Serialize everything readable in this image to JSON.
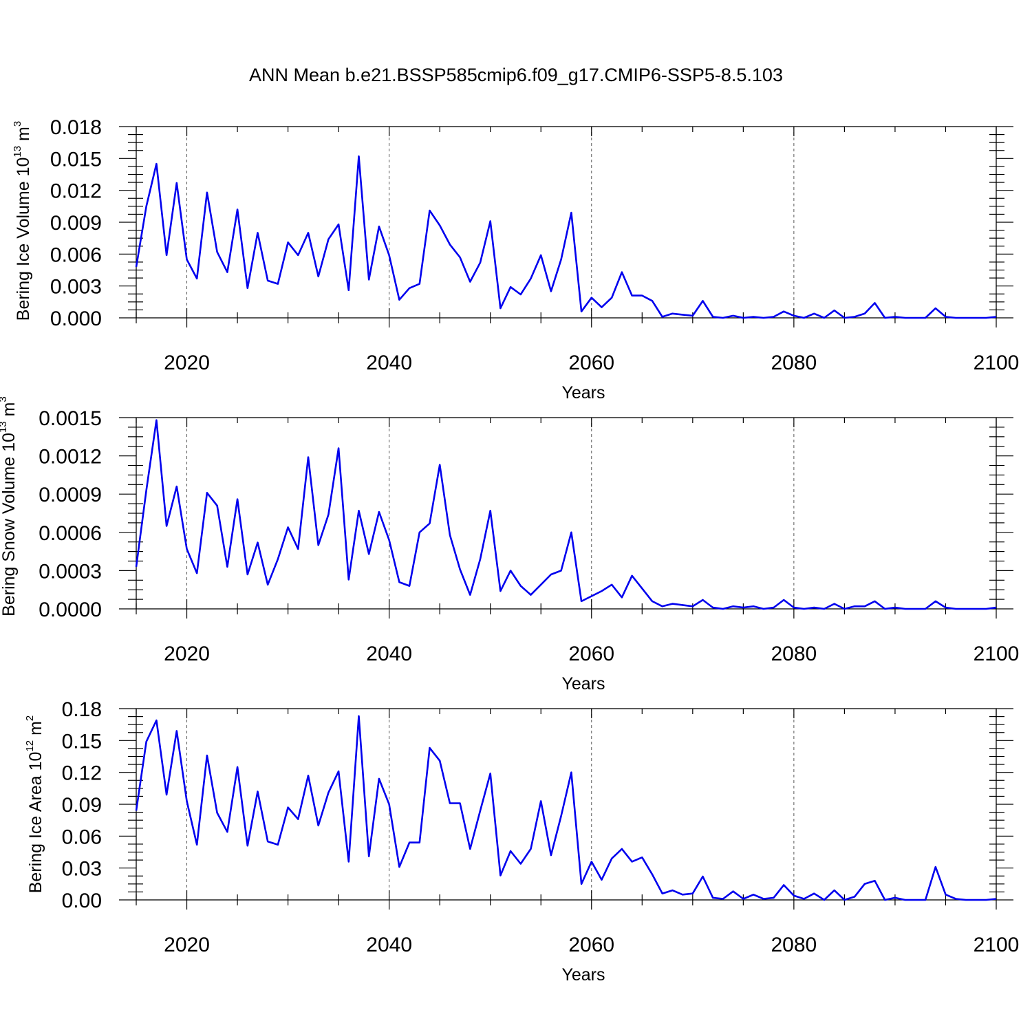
{
  "chart_data": [
    {
      "type": "line",
      "title": "ANN Mean b.e21.BSSP585cmip6.f09_g17.CMIP6-SSP5-8.5.103",
      "xlabel": "Years",
      "ylabel": "Bering Ice Volume 10",
      "ylabel_exponent": "13",
      "ylabel_unit": " m",
      "ylabel_unit_exponent": "3",
      "xlim": [
        2015,
        2100
      ],
      "ylim": [
        0,
        0.018
      ],
      "xticks": [
        2020,
        2040,
        2060,
        2080,
        2100
      ],
      "yticks": [
        0.0,
        0.003,
        0.006,
        0.009,
        0.012,
        0.015,
        0.018
      ],
      "ytick_labels": [
        "0.000",
        "0.003",
        "0.006",
        "0.009",
        "0.012",
        "0.015",
        "0.018"
      ],
      "grid": "dashed vertical at major x ticks",
      "series_color": "#0000ee",
      "x": [
        2015,
        2016,
        2017,
        2018,
        2019,
        2020,
        2021,
        2022,
        2023,
        2024,
        2025,
        2026,
        2027,
        2028,
        2029,
        2030,
        2031,
        2032,
        2033,
        2034,
        2035,
        2036,
        2037,
        2038,
        2039,
        2040,
        2041,
        2042,
        2043,
        2044,
        2045,
        2046,
        2047,
        2048,
        2049,
        2050,
        2051,
        2052,
        2053,
        2054,
        2055,
        2056,
        2057,
        2058,
        2059,
        2060,
        2061,
        2062,
        2063,
        2064,
        2065,
        2066,
        2067,
        2068,
        2069,
        2070,
        2071,
        2072,
        2073,
        2074,
        2075,
        2076,
        2077,
        2078,
        2079,
        2080,
        2081,
        2082,
        2083,
        2084,
        2085,
        2086,
        2087,
        2088,
        2089,
        2090,
        2091,
        2092,
        2093,
        2094,
        2095,
        2096,
        2097,
        2098,
        2099,
        2100
      ],
      "values": [
        0.0048,
        0.0105,
        0.0145,
        0.0059,
        0.0127,
        0.0055,
        0.0037,
        0.0118,
        0.0062,
        0.0043,
        0.0102,
        0.0028,
        0.008,
        0.0035,
        0.0032,
        0.0071,
        0.0059,
        0.008,
        0.0039,
        0.0074,
        0.0088,
        0.0026,
        0.0152,
        0.0036,
        0.0086,
        0.0059,
        0.0017,
        0.0028,
        0.0032,
        0.0101,
        0.0087,
        0.0069,
        0.0057,
        0.0034,
        0.0052,
        0.0091,
        0.0009,
        0.0029,
        0.0022,
        0.0037,
        0.0059,
        0.0025,
        0.0055,
        0.0099,
        0.0006,
        0.0019,
        0.001,
        0.0019,
        0.0043,
        0.0021,
        0.0021,
        0.0016,
        0.0001,
        0.0004,
        0.0003,
        0.0002,
        0.0016,
        0.0001,
        0.0,
        0.0002,
        0.0,
        0.0001,
        0.0,
        0.0001,
        0.0006,
        0.0002,
        0.0,
        0.0004,
        0.0,
        0.0007,
        0.0,
        0.0001,
        0.0004,
        0.0014,
        0.0,
        0.0001,
        0.0,
        0.0,
        0.0,
        0.0009,
        0.0001,
        0.0,
        0.0,
        0.0,
        0.0,
        0.0001
      ]
    },
    {
      "type": "line",
      "xlabel": "Years",
      "ylabel": "Bering Snow Volume 10",
      "ylabel_exponent": "13",
      "ylabel_unit": " m",
      "ylabel_unit_exponent": "3",
      "xlim": [
        2015,
        2100
      ],
      "ylim": [
        0,
        0.0015
      ],
      "xticks": [
        2020,
        2040,
        2060,
        2080,
        2100
      ],
      "yticks": [
        0.0,
        0.0003,
        0.0006,
        0.0009,
        0.0012,
        0.0015
      ],
      "ytick_labels": [
        "0.0000",
        "0.0003",
        "0.0006",
        "0.0009",
        "0.0012",
        "0.0015"
      ],
      "grid": "dashed vertical at major x ticks",
      "series_color": "#0000ee",
      "x": [
        2015,
        2016,
        2017,
        2018,
        2019,
        2020,
        2021,
        2022,
        2023,
        2024,
        2025,
        2026,
        2027,
        2028,
        2029,
        2030,
        2031,
        2032,
        2033,
        2034,
        2035,
        2036,
        2037,
        2038,
        2039,
        2040,
        2041,
        2042,
        2043,
        2044,
        2045,
        2046,
        2047,
        2048,
        2049,
        2050,
        2051,
        2052,
        2053,
        2054,
        2055,
        2056,
        2057,
        2058,
        2059,
        2060,
        2061,
        2062,
        2063,
        2064,
        2065,
        2066,
        2067,
        2068,
        2069,
        2070,
        2071,
        2072,
        2073,
        2074,
        2075,
        2076,
        2077,
        2078,
        2079,
        2080,
        2081,
        2082,
        2083,
        2084,
        2085,
        2086,
        2087,
        2088,
        2089,
        2090,
        2091,
        2092,
        2093,
        2094,
        2095,
        2096,
        2097,
        2098,
        2099,
        2100
      ],
      "values": [
        0.00033,
        0.00093,
        0.00148,
        0.00065,
        0.00096,
        0.00047,
        0.00028,
        0.00091,
        0.00081,
        0.00033,
        0.00086,
        0.00027,
        0.00052,
        0.00019,
        0.00039,
        0.00064,
        0.00047,
        0.00119,
        0.0005,
        0.00074,
        0.00126,
        0.00023,
        0.00077,
        0.00043,
        0.00076,
        0.00054,
        0.00021,
        0.00018,
        0.0006,
        0.00067,
        0.00113,
        0.00058,
        0.00031,
        0.00011,
        0.00039,
        0.00077,
        0.00014,
        0.0003,
        0.00018,
        0.00011,
        0.00019,
        0.00027,
        0.0003,
        0.0006,
        6e-05,
        0.0001,
        0.00014,
        0.00019,
        9e-05,
        0.00026,
        0.00016,
        6e-05,
        2e-05,
        4e-05,
        3e-05,
        2e-05,
        7e-05,
        1e-05,
        0.0,
        2e-05,
        1e-05,
        2e-05,
        0.0,
        1e-05,
        7e-05,
        1e-05,
        0.0,
        1e-05,
        0.0,
        4e-05,
        0.0,
        2e-05,
        2e-05,
        6e-05,
        0.0,
        1e-05,
        0.0,
        0.0,
        0.0,
        6e-05,
        1e-05,
        0.0,
        0.0,
        0.0,
        0.0,
        1e-05
      ]
    },
    {
      "type": "line",
      "xlabel": "Years",
      "ylabel": "Bering Ice Area 10",
      "ylabel_exponent": "12",
      "ylabel_unit": " m",
      "ylabel_unit_exponent": "2",
      "xlim": [
        2015,
        2100
      ],
      "ylim": [
        0,
        0.18
      ],
      "xticks": [
        2020,
        2040,
        2060,
        2080,
        2100
      ],
      "yticks": [
        0.0,
        0.03,
        0.06,
        0.09,
        0.12,
        0.15,
        0.18
      ],
      "ytick_labels": [
        "0.00",
        "0.03",
        "0.06",
        "0.09",
        "0.12",
        "0.15",
        "0.18"
      ],
      "grid": "dashed vertical at major x ticks",
      "series_color": "#0000ee",
      "x": [
        2015,
        2016,
        2017,
        2018,
        2019,
        2020,
        2021,
        2022,
        2023,
        2024,
        2025,
        2026,
        2027,
        2028,
        2029,
        2030,
        2031,
        2032,
        2033,
        2034,
        2035,
        2036,
        2037,
        2038,
        2039,
        2040,
        2041,
        2042,
        2043,
        2044,
        2045,
        2046,
        2047,
        2048,
        2049,
        2050,
        2051,
        2052,
        2053,
        2054,
        2055,
        2056,
        2057,
        2058,
        2059,
        2060,
        2061,
        2062,
        2063,
        2064,
        2065,
        2066,
        2067,
        2068,
        2069,
        2070,
        2071,
        2072,
        2073,
        2074,
        2075,
        2076,
        2077,
        2078,
        2079,
        2080,
        2081,
        2082,
        2083,
        2084,
        2085,
        2086,
        2087,
        2088,
        2089,
        2090,
        2091,
        2092,
        2093,
        2094,
        2095,
        2096,
        2097,
        2098,
        2099,
        2100
      ],
      "values": [
        0.084,
        0.149,
        0.169,
        0.099,
        0.159,
        0.093,
        0.052,
        0.136,
        0.082,
        0.064,
        0.125,
        0.051,
        0.102,
        0.055,
        0.052,
        0.087,
        0.076,
        0.117,
        0.07,
        0.101,
        0.121,
        0.036,
        0.173,
        0.041,
        0.114,
        0.09,
        0.031,
        0.054,
        0.054,
        0.143,
        0.131,
        0.091,
        0.091,
        0.048,
        0.084,
        0.119,
        0.023,
        0.046,
        0.034,
        0.048,
        0.093,
        0.042,
        0.079,
        0.12,
        0.015,
        0.036,
        0.019,
        0.039,
        0.048,
        0.036,
        0.04,
        0.024,
        0.006,
        0.009,
        0.005,
        0.006,
        0.022,
        0.002,
        0.001,
        0.008,
        0.001,
        0.005,
        0.001,
        0.002,
        0.014,
        0.004,
        0.001,
        0.006,
        0.0,
        0.009,
        0.0,
        0.003,
        0.015,
        0.018,
        0.0,
        0.002,
        0.0,
        0.0,
        0.0,
        0.031,
        0.005,
        0.001,
        0.0,
        0.0,
        0.0,
        0.001
      ]
    }
  ]
}
